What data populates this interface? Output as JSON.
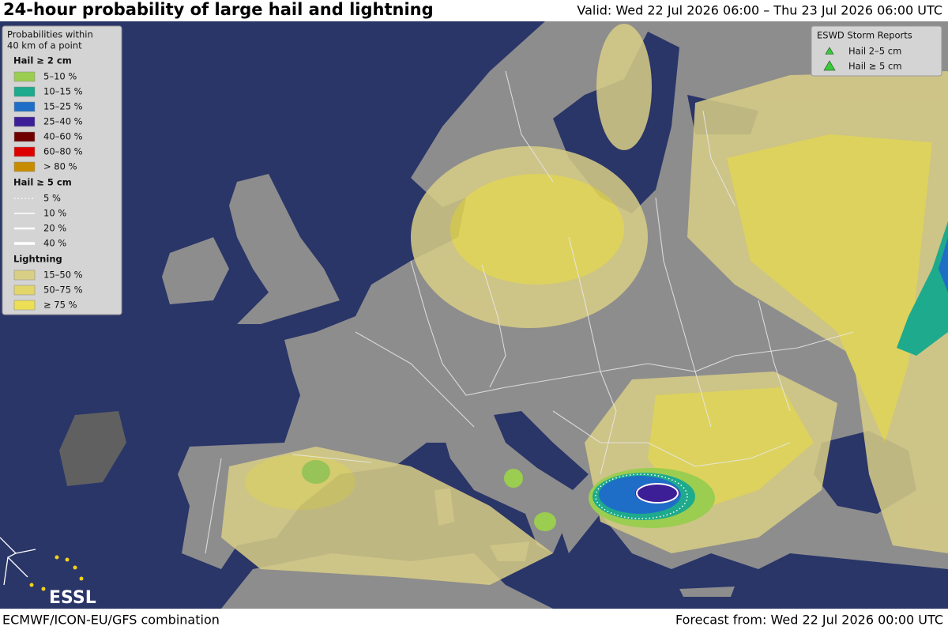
{
  "header": {
    "title": "24-hour probability of large hail and lightning",
    "valid": "Valid: Wed 22 Jul 2026 06:00 – Thu 23 Jul 2026 06:00 UTC"
  },
  "legend": {
    "title": [
      "Probabilities within",
      "40 km of a point"
    ],
    "sections": [
      {
        "title": "Hail ≥ 2 cm",
        "kind": "fill",
        "items": [
          {
            "label": "5–10 %",
            "color": "#9acd50"
          },
          {
            "label": "10–15 %",
            "color": "#1eaa8c"
          },
          {
            "label": "15–25 %",
            "color": "#1e6ec8"
          },
          {
            "label": "25–40 %",
            "color": "#3c1e96"
          },
          {
            "label": "40–60 %",
            "color": "#6e0000"
          },
          {
            "label": "60–80 %",
            "color": "#dc0000"
          },
          {
            "label": "> 80 %",
            "color": "#c88c00"
          }
        ]
      },
      {
        "title": "Hail ≥ 5 cm",
        "kind": "line",
        "items": [
          {
            "label": "5 %"
          },
          {
            "label": "10 %"
          },
          {
            "label": "20 %"
          },
          {
            "label": "40 %"
          }
        ]
      },
      {
        "title": "Lightning",
        "kind": "fill",
        "items": [
          {
            "label": "15–50 %",
            "color": "#d9ce86"
          },
          {
            "label": "50–75 %",
            "color": "#e2d66a"
          },
          {
            "label": "≥ 75 %",
            "color": "#ecdf55"
          }
        ]
      }
    ]
  },
  "reports": {
    "title": "ESWD Storm Reports",
    "items": [
      {
        "label": "Hail 2–5 cm",
        "size": "small"
      },
      {
        "label": "Hail ≥ 5 cm",
        "size": "large"
      }
    ]
  },
  "logo": "ESSL",
  "footer": {
    "left": "ECMWF/ICON-EU/GFS combination",
    "right": "Forecast from: Wed 22 Jul 2026 00:00 UTC"
  }
}
